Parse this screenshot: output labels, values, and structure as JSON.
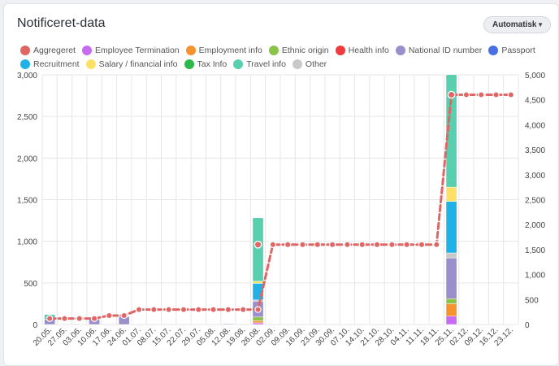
{
  "card": {
    "title": "Notificeret-data",
    "dropdown": {
      "selected": "Automatisk",
      "icon": "chevron-down-icon"
    }
  },
  "legend": [
    {
      "label": "Aggregeret",
      "color": "#e06666"
    },
    {
      "label": "Employee Termination",
      "color": "#c76bf0"
    },
    {
      "label": "Employment info",
      "color": "#f7932f"
    },
    {
      "label": "Ethnic origin",
      "color": "#8bc34a"
    },
    {
      "label": "Health info",
      "color": "#ef3b3b"
    },
    {
      "label": "National ID number",
      "color": "#9b8fcb"
    },
    {
      "label": "Passport",
      "color": "#4a6fe3"
    },
    {
      "label": "Recruitment",
      "color": "#20b1e6"
    },
    {
      "label": "Salary / financial info",
      "color": "#ffe066"
    },
    {
      "label": "Tax Info",
      "color": "#2db84b"
    },
    {
      "label": "Travel info",
      "color": "#58cfae"
    },
    {
      "label": "Other",
      "color": "#c8c8c8"
    }
  ],
  "chart_data": {
    "type": "bar",
    "categories": [
      "20.05.",
      "27.05.",
      "03.06.",
      "10.06.",
      "17.06.",
      "24.06.",
      "01.07.",
      "08.07.",
      "15.07.",
      "22.07.",
      "29.07.",
      "05.08.",
      "12.08.",
      "19.08.",
      "26.08.",
      "02.09.",
      "09.09.",
      "16.09.",
      "23.09.",
      "30.09.",
      "07.10.",
      "14.10.",
      "21.10.",
      "28.10.",
      "04.11.",
      "11.11.",
      "18.11.",
      "25.11.",
      "02.12.",
      "09.12.",
      "16.12.",
      "23.12."
    ],
    "y_left": {
      "ticks": [
        "0",
        "500",
        "1,000",
        "1,500",
        "2,000",
        "2,500",
        "3,000"
      ],
      "ylim": [
        0,
        3000
      ]
    },
    "y_right": {
      "ticks": [
        "0",
        "500",
        "1,000",
        "1,500",
        "2,000",
        "2,500",
        "3,000",
        "3,500",
        "4,000",
        "4,500",
        "5,000"
      ],
      "ylim": [
        0,
        5000
      ]
    },
    "grid": true,
    "legend_position": "top",
    "bar_series": [
      {
        "name": "Employee Termination",
        "color": "#c76bf0",
        "values": {
          "26.08.": 20,
          "25.11.": 100
        }
      },
      {
        "name": "Employment info",
        "color": "#f7932f",
        "values": {
          "26.08.": 25,
          "25.11.": 150
        }
      },
      {
        "name": "Ethnic origin",
        "color": "#8bc34a",
        "values": {
          "26.08.": 45,
          "25.11.": 60
        }
      },
      {
        "name": "National ID number",
        "color": "#9b8fcb",
        "values": {
          "20.05.": 60,
          "10.06.": 60,
          "24.06.": 90,
          "12.08.": 8,
          "26.08.": 190,
          "25.11.": 490
        }
      },
      {
        "name": "Other",
        "color": "#c8c8c8",
        "values": {
          "26.08.": 15,
          "25.11.": 60
        }
      },
      {
        "name": "Recruitment",
        "color": "#20b1e6",
        "values": {
          "26.08.": 200,
          "25.11.": 620
        }
      },
      {
        "name": "Salary / financial info",
        "color": "#ffe066",
        "values": {
          "26.08.": 25,
          "25.11.": 170
        }
      },
      {
        "name": "Travel info",
        "color": "#58cfae",
        "values": {
          "20.05.": 60,
          "10.06.": 10,
          "24.06.": 10,
          "26.08.": 760,
          "25.11.": 1350
        }
      }
    ],
    "line_series": {
      "name": "Aggregeret",
      "color": "#e06666",
      "axis": "right",
      "values": [
        120,
        120,
        120,
        120,
        180,
        180,
        300,
        300,
        300,
        300,
        300,
        300,
        300,
        300,
        300,
        1600,
        1600,
        1600,
        1600,
        1600,
        1600,
        1600,
        1600,
        1600,
        1600,
        1600,
        1600,
        4600,
        4600,
        4600,
        4600,
        4600
      ],
      "point_markers_from": 1,
      "extra_markers": [
        {
          "x": "19.08.",
          "y": 1600
        },
        {
          "x": "18.11.",
          "y": 4600
        }
      ]
    }
  }
}
